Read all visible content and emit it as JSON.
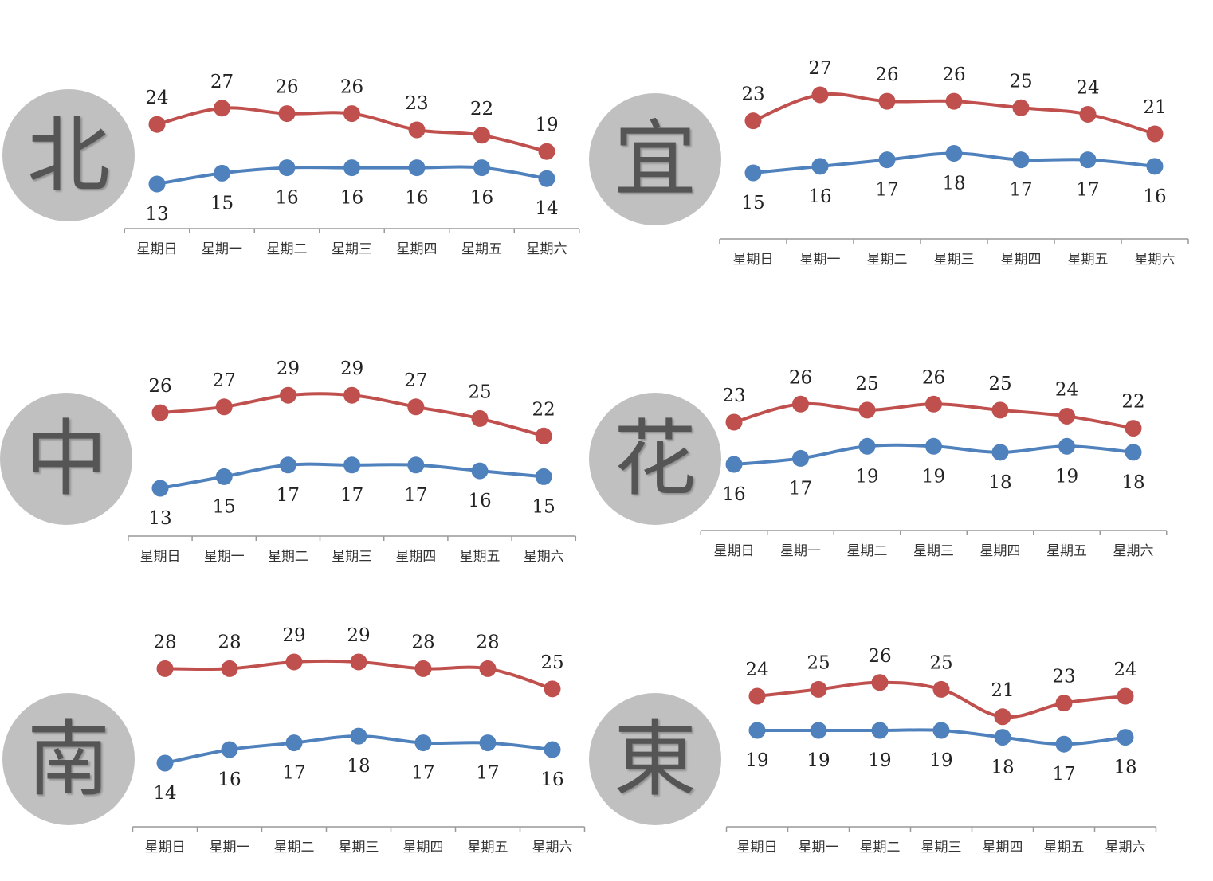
{
  "colors": {
    "high": "#c0504d",
    "low": "#4f81bd",
    "axis": "#999999",
    "badge": "#c0c0c0",
    "badge_text": "#555555"
  },
  "chart_data": [
    {
      "type": "line",
      "region": "北",
      "categories": [
        "星期日",
        "星期一",
        "星期二",
        "星期三",
        "星期四",
        "星期五",
        "星期六"
      ],
      "series": [
        {
          "key": "high",
          "values": [
            24,
            27,
            26,
            26,
            23,
            22,
            19
          ]
        },
        {
          "key": "low",
          "values": [
            13,
            15,
            16,
            16,
            16,
            16,
            14
          ]
        }
      ]
    },
    {
      "type": "line",
      "region": "宜",
      "categories": [
        "星期日",
        "星期一",
        "星期二",
        "星期三",
        "星期四",
        "星期五",
        "星期六"
      ],
      "series": [
        {
          "key": "high",
          "values": [
            23,
            27,
            26,
            26,
            25,
            24,
            21
          ]
        },
        {
          "key": "low",
          "values": [
            15,
            16,
            17,
            18,
            17,
            17,
            16
          ]
        }
      ]
    },
    {
      "type": "line",
      "region": "中",
      "categories": [
        "星期日",
        "星期一",
        "星期二",
        "星期三",
        "星期四",
        "星期五",
        "星期六"
      ],
      "series": [
        {
          "key": "high",
          "values": [
            26,
            27,
            29,
            29,
            27,
            25,
            22
          ]
        },
        {
          "key": "low",
          "values": [
            13,
            15,
            17,
            17,
            17,
            16,
            15
          ]
        }
      ]
    },
    {
      "type": "line",
      "region": "花",
      "categories": [
        "星期日",
        "星期一",
        "星期二",
        "星期三",
        "星期四",
        "星期五",
        "星期六"
      ],
      "series": [
        {
          "key": "high",
          "values": [
            23,
            26,
            25,
            26,
            25,
            24,
            22
          ]
        },
        {
          "key": "low",
          "values": [
            16,
            17,
            19,
            19,
            18,
            19,
            18
          ]
        }
      ]
    },
    {
      "type": "line",
      "region": "南",
      "categories": [
        "星期日",
        "星期一",
        "星期二",
        "星期三",
        "星期四",
        "星期五",
        "星期六"
      ],
      "series": [
        {
          "key": "high",
          "values": [
            28,
            28,
            29,
            29,
            28,
            28,
            25
          ]
        },
        {
          "key": "low",
          "values": [
            14,
            16,
            17,
            18,
            17,
            17,
            16
          ]
        }
      ]
    },
    {
      "type": "line",
      "region": "東",
      "categories": [
        "星期日",
        "星期一",
        "星期二",
        "星期三",
        "星期四",
        "星期五",
        "星期六"
      ],
      "series": [
        {
          "key": "high",
          "values": [
            24,
            25,
            26,
            25,
            21,
            23,
            24
          ]
        },
        {
          "key": "low",
          "values": [
            19,
            19,
            19,
            19,
            18,
            17,
            18
          ]
        }
      ]
    }
  ]
}
